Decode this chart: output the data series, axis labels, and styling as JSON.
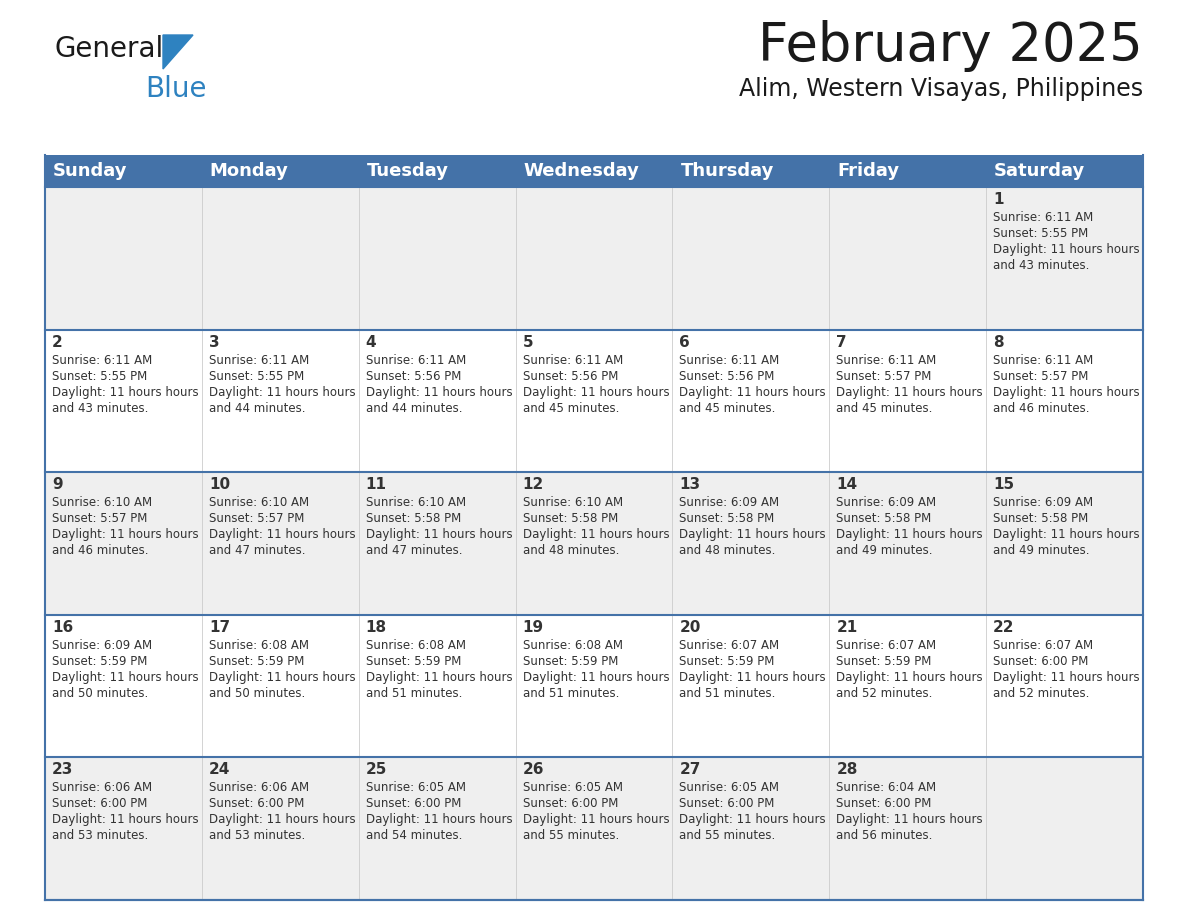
{
  "title": "February 2025",
  "subtitle": "Alim, Western Visayas, Philippines",
  "header_bg_color": "#4472a8",
  "header_text_color": "#ffffff",
  "cell_bg_color_odd": "#efefef",
  "cell_bg_color_even": "#ffffff",
  "grid_line_color": "#4472a8",
  "day_headers": [
    "Sunday",
    "Monday",
    "Tuesday",
    "Wednesday",
    "Thursday",
    "Friday",
    "Saturday"
  ],
  "title_fontsize": 38,
  "subtitle_fontsize": 17,
  "header_fontsize": 13,
  "day_num_fontsize": 11,
  "cell_text_fontsize": 8.5,
  "logo_general_color": "#1a1a1a",
  "logo_blue_color": "#2e82c0",
  "calendar_data": [
    [
      null,
      null,
      null,
      null,
      null,
      null,
      {
        "day": 1,
        "sunrise": "6:11 AM",
        "sunset": "5:55 PM",
        "daylight": "11 hours and 43 minutes."
      }
    ],
    [
      {
        "day": 2,
        "sunrise": "6:11 AM",
        "sunset": "5:55 PM",
        "daylight": "11 hours and 43 minutes."
      },
      {
        "day": 3,
        "sunrise": "6:11 AM",
        "sunset": "5:55 PM",
        "daylight": "11 hours and 44 minutes."
      },
      {
        "day": 4,
        "sunrise": "6:11 AM",
        "sunset": "5:56 PM",
        "daylight": "11 hours and 44 minutes."
      },
      {
        "day": 5,
        "sunrise": "6:11 AM",
        "sunset": "5:56 PM",
        "daylight": "11 hours and 45 minutes."
      },
      {
        "day": 6,
        "sunrise": "6:11 AM",
        "sunset": "5:56 PM",
        "daylight": "11 hours and 45 minutes."
      },
      {
        "day": 7,
        "sunrise": "6:11 AM",
        "sunset": "5:57 PM",
        "daylight": "11 hours and 45 minutes."
      },
      {
        "day": 8,
        "sunrise": "6:11 AM",
        "sunset": "5:57 PM",
        "daylight": "11 hours and 46 minutes."
      }
    ],
    [
      {
        "day": 9,
        "sunrise": "6:10 AM",
        "sunset": "5:57 PM",
        "daylight": "11 hours and 46 minutes."
      },
      {
        "day": 10,
        "sunrise": "6:10 AM",
        "sunset": "5:57 PM",
        "daylight": "11 hours and 47 minutes."
      },
      {
        "day": 11,
        "sunrise": "6:10 AM",
        "sunset": "5:58 PM",
        "daylight": "11 hours and 47 minutes."
      },
      {
        "day": 12,
        "sunrise": "6:10 AM",
        "sunset": "5:58 PM",
        "daylight": "11 hours and 48 minutes."
      },
      {
        "day": 13,
        "sunrise": "6:09 AM",
        "sunset": "5:58 PM",
        "daylight": "11 hours and 48 minutes."
      },
      {
        "day": 14,
        "sunrise": "6:09 AM",
        "sunset": "5:58 PM",
        "daylight": "11 hours and 49 minutes."
      },
      {
        "day": 15,
        "sunrise": "6:09 AM",
        "sunset": "5:58 PM",
        "daylight": "11 hours and 49 minutes."
      }
    ],
    [
      {
        "day": 16,
        "sunrise": "6:09 AM",
        "sunset": "5:59 PM",
        "daylight": "11 hours and 50 minutes."
      },
      {
        "day": 17,
        "sunrise": "6:08 AM",
        "sunset": "5:59 PM",
        "daylight": "11 hours and 50 minutes."
      },
      {
        "day": 18,
        "sunrise": "6:08 AM",
        "sunset": "5:59 PM",
        "daylight": "11 hours and 51 minutes."
      },
      {
        "day": 19,
        "sunrise": "6:08 AM",
        "sunset": "5:59 PM",
        "daylight": "11 hours and 51 minutes."
      },
      {
        "day": 20,
        "sunrise": "6:07 AM",
        "sunset": "5:59 PM",
        "daylight": "11 hours and 51 minutes."
      },
      {
        "day": 21,
        "sunrise": "6:07 AM",
        "sunset": "5:59 PM",
        "daylight": "11 hours and 52 minutes."
      },
      {
        "day": 22,
        "sunrise": "6:07 AM",
        "sunset": "6:00 PM",
        "daylight": "11 hours and 52 minutes."
      }
    ],
    [
      {
        "day": 23,
        "sunrise": "6:06 AM",
        "sunset": "6:00 PM",
        "daylight": "11 hours and 53 minutes."
      },
      {
        "day": 24,
        "sunrise": "6:06 AM",
        "sunset": "6:00 PM",
        "daylight": "11 hours and 53 minutes."
      },
      {
        "day": 25,
        "sunrise": "6:05 AM",
        "sunset": "6:00 PM",
        "daylight": "11 hours and 54 minutes."
      },
      {
        "day": 26,
        "sunrise": "6:05 AM",
        "sunset": "6:00 PM",
        "daylight": "11 hours and 55 minutes."
      },
      {
        "day": 27,
        "sunrise": "6:05 AM",
        "sunset": "6:00 PM",
        "daylight": "11 hours and 55 minutes."
      },
      {
        "day": 28,
        "sunrise": "6:04 AM",
        "sunset": "6:00 PM",
        "daylight": "11 hours and 56 minutes."
      },
      null
    ]
  ]
}
